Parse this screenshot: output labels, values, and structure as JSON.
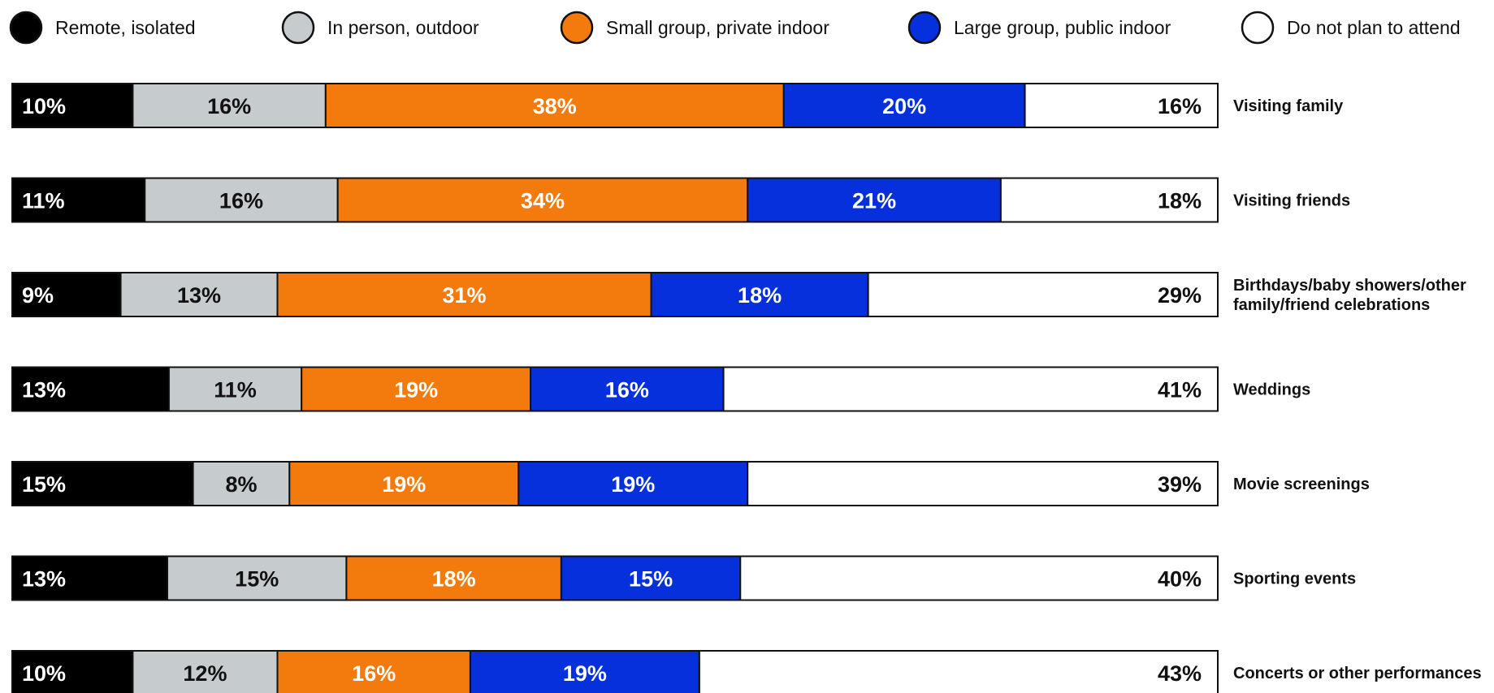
{
  "chart_data": {
    "type": "bar",
    "orientation": "horizontal",
    "stacked": true,
    "normalized_percent": true,
    "legend_position": "top",
    "grid": false,
    "categories": [
      [
        "Visiting family"
      ],
      [
        "Visiting friends"
      ],
      [
        "Birthdays/baby showers/other",
        "family/friend celebrations"
      ],
      [
        "Weddings"
      ],
      [
        "Movie screenings"
      ],
      [
        "Sporting events"
      ],
      [
        "Concerts or other performances"
      ]
    ],
    "series": [
      {
        "name": "Remote, isolated",
        "color": "#000000",
        "text_color": "#ffffff",
        "values": [
          10,
          11,
          9,
          13,
          15,
          13,
          10
        ]
      },
      {
        "name": "In person, outdoor",
        "color": "#c6cbce",
        "text_color": "#111111",
        "values": [
          16,
          16,
          13,
          11,
          8,
          15,
          12
        ]
      },
      {
        "name": "Small group, private indoor",
        "color": "#f37a0c",
        "text_color": "#ffffff",
        "values": [
          38,
          34,
          31,
          19,
          19,
          18,
          16
        ]
      },
      {
        "name": "Large group, public indoor",
        "color": "#0630dc",
        "text_color": "#ffffff",
        "values": [
          20,
          21,
          18,
          16,
          19,
          15,
          19
        ]
      },
      {
        "name": "Do not plan to attend",
        "color": "#ffffff",
        "text_color": "#111111",
        "values": [
          16,
          18,
          29,
          41,
          39,
          40,
          43
        ]
      }
    ]
  }
}
